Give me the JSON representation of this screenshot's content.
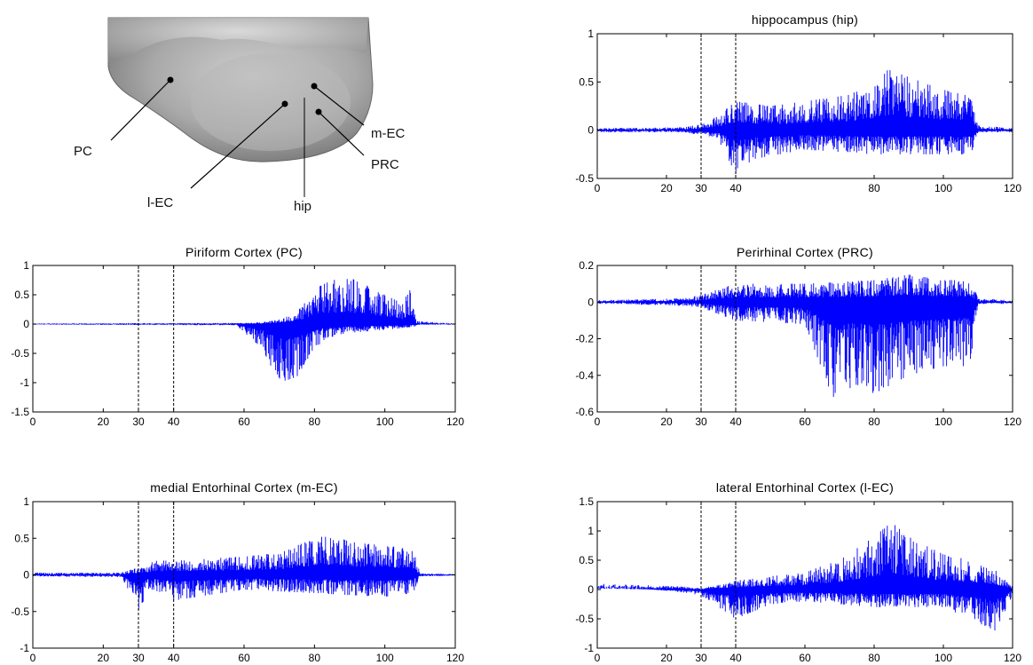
{
  "figure": {
    "x_data_range": [
      0,
      120
    ],
    "event_markers_x": [
      30,
      40
    ],
    "trace_color": "#0000ff",
    "marker_style": "black dashed vertical lines"
  },
  "brain_illustration": {
    "labels": [
      "PC",
      "m-EC",
      "PRC",
      "l-EC",
      "hip"
    ]
  },
  "chart_data": [
    {
      "id": "hip",
      "type": "line",
      "title": "hippocampus (hip)",
      "xlim": [
        0,
        120
      ],
      "ylim": [
        -0.5,
        1
      ],
      "xticks": [
        0,
        20,
        30,
        40,
        80,
        100,
        120
      ],
      "yticks": [
        -0.5,
        0,
        0.5,
        1
      ],
      "ytick_labels": [
        "-0.5",
        "0",
        "0.5",
        "1"
      ],
      "series": [
        {
          "color": "#0000ff",
          "envelope_points": [
            [
              0,
              0.02
            ],
            [
              25,
              0.03
            ],
            [
              30,
              0.06
            ],
            [
              35,
              0.15
            ],
            [
              40,
              0.3
            ],
            [
              50,
              0.25
            ],
            [
              60,
              0.3
            ],
            [
              70,
              0.35
            ],
            [
              80,
              0.45
            ],
            [
              84,
              0.63
            ],
            [
              90,
              0.55
            ],
            [
              100,
              0.42
            ],
            [
              108,
              0.35
            ],
            [
              110,
              0.05
            ],
            [
              120,
              0.02
            ]
          ],
          "trough_points": [
            [
              0,
              -0.02
            ],
            [
              25,
              -0.02
            ],
            [
              30,
              -0.05
            ],
            [
              35,
              -0.1
            ],
            [
              40,
              -0.45
            ],
            [
              45,
              -0.3
            ],
            [
              60,
              -0.2
            ],
            [
              80,
              -0.25
            ],
            [
              100,
              -0.25
            ],
            [
              108,
              -0.25
            ],
            [
              110,
              -0.02
            ],
            [
              120,
              -0.02
            ]
          ]
        }
      ]
    },
    {
      "id": "pc",
      "type": "line",
      "title": "Piriform Cortex (PC)",
      "xlim": [
        0,
        120
      ],
      "ylim": [
        -1.5,
        1
      ],
      "xticks": [
        0,
        20,
        30,
        40,
        60,
        80,
        100,
        120
      ],
      "yticks": [
        -1.5,
        -1,
        -0.5,
        0,
        0.5,
        1
      ],
      "ytick_labels": [
        "-1.5",
        "-1",
        "-0.5",
        "0",
        "0.5",
        "1"
      ],
      "series": [
        {
          "color": "#0000ff",
          "envelope_points": [
            [
              0,
              0.01
            ],
            [
              60,
              0.02
            ],
            [
              65,
              0.03
            ],
            [
              70,
              0.08
            ],
            [
              75,
              0.2
            ],
            [
              80,
              0.6
            ],
            [
              85,
              0.75
            ],
            [
              90,
              0.78
            ],
            [
              95,
              0.7
            ],
            [
              100,
              0.5
            ],
            [
              105,
              0.35
            ],
            [
              107,
              0.6
            ],
            [
              109,
              0.05
            ],
            [
              120,
              0.01
            ]
          ],
          "trough_points": [
            [
              0,
              -0.01
            ],
            [
              58,
              -0.02
            ],
            [
              60,
              -0.15
            ],
            [
              65,
              -0.4
            ],
            [
              70,
              -1.0
            ],
            [
              75,
              -0.9
            ],
            [
              78,
              -0.6
            ],
            [
              82,
              -0.3
            ],
            [
              90,
              -0.15
            ],
            [
              100,
              -0.1
            ],
            [
              108,
              -0.05
            ],
            [
              110,
              -0.01
            ],
            [
              120,
              -0.01
            ]
          ]
        }
      ]
    },
    {
      "id": "prc",
      "type": "line",
      "title": "Perirhinal Cortex (PRC)",
      "xlim": [
        0,
        120
      ],
      "ylim": [
        -0.6,
        0.2
      ],
      "xticks": [
        0,
        20,
        30,
        40,
        60,
        80,
        100,
        120
      ],
      "yticks": [
        -0.6,
        -0.4,
        -0.2,
        0,
        0.2
      ],
      "ytick_labels": [
        "-0.6",
        "-0.4",
        "-0.2",
        "0",
        "0.2"
      ],
      "series": [
        {
          "color": "#0000ff",
          "envelope_points": [
            [
              0,
              0.01
            ],
            [
              25,
              0.02
            ],
            [
              30,
              0.04
            ],
            [
              35,
              0.07
            ],
            [
              40,
              0.1
            ],
            [
              60,
              0.1
            ],
            [
              80,
              0.12
            ],
            [
              90,
              0.15
            ],
            [
              100,
              0.12
            ],
            [
              108,
              0.12
            ],
            [
              110,
              0.02
            ],
            [
              120,
              0.01
            ]
          ],
          "trough_points": [
            [
              0,
              -0.01
            ],
            [
              6,
              -0.01
            ],
            [
              25,
              -0.02
            ],
            [
              30,
              -0.03
            ],
            [
              40,
              -0.1
            ],
            [
              60,
              -0.12
            ],
            [
              68,
              -0.52
            ],
            [
              75,
              -0.45
            ],
            [
              80,
              -0.5
            ],
            [
              90,
              -0.4
            ],
            [
              100,
              -0.35
            ],
            [
              108,
              -0.35
            ],
            [
              110,
              -0.01
            ],
            [
              120,
              -0.01
            ]
          ]
        }
      ]
    },
    {
      "id": "mec",
      "type": "line",
      "title": "medial Entorhinal Cortex (m-EC)",
      "xlim": [
        0,
        120
      ],
      "ylim": [
        -1,
        1
      ],
      "xticks": [
        0,
        20,
        30,
        40,
        60,
        80,
        100,
        120
      ],
      "yticks": [
        -1,
        -0.5,
        0,
        0.5,
        1
      ],
      "ytick_labels": [
        "-1",
        "-0.5",
        "0",
        "0.5",
        "1"
      ],
      "series": [
        {
          "color": "#0000ff",
          "envelope_points": [
            [
              0,
              0.03
            ],
            [
              25,
              0.03
            ],
            [
              30,
              0.1
            ],
            [
              35,
              0.2
            ],
            [
              40,
              0.2
            ],
            [
              60,
              0.25
            ],
            [
              70,
              0.3
            ],
            [
              80,
              0.5
            ],
            [
              85,
              0.55
            ],
            [
              90,
              0.45
            ],
            [
              100,
              0.4
            ],
            [
              108,
              0.35
            ],
            [
              110,
              0.02
            ],
            [
              120,
              0.01
            ]
          ],
          "trough_points": [
            [
              0,
              -0.02
            ],
            [
              25,
              -0.03
            ],
            [
              30,
              -0.5
            ],
            [
              33,
              -0.2
            ],
            [
              40,
              -0.35
            ],
            [
              60,
              -0.2
            ],
            [
              80,
              -0.25
            ],
            [
              100,
              -0.3
            ],
            [
              108,
              -0.25
            ],
            [
              110,
              -0.02
            ],
            [
              120,
              -0.01
            ]
          ]
        }
      ]
    },
    {
      "id": "lec",
      "type": "line",
      "title": "lateral Entorhinal Cortex (l-EC)",
      "xlim": [
        0,
        120
      ],
      "ylim": [
        -1,
        1.5
      ],
      "xticks": [
        0,
        20,
        30,
        40,
        60,
        80,
        100,
        120
      ],
      "yticks": [
        -1,
        -0.5,
        0,
        0.5,
        1,
        1.5
      ],
      "ytick_labels": [
        "-1",
        "-0.5",
        "0",
        "0.5",
        "1",
        "1.5"
      ],
      "series": [
        {
          "color": "#0000ff",
          "envelope_points": [
            [
              0,
              0.1
            ],
            [
              10,
              0.08
            ],
            [
              25,
              0.05
            ],
            [
              30,
              0.02
            ],
            [
              40,
              0.15
            ],
            [
              60,
              0.3
            ],
            [
              70,
              0.5
            ],
            [
              80,
              0.9
            ],
            [
              85,
              1.15
            ],
            [
              90,
              0.9
            ],
            [
              100,
              0.6
            ],
            [
              108,
              0.5
            ],
            [
              115,
              0.35
            ],
            [
              120,
              0.05
            ]
          ],
          "trough_points": [
            [
              0,
              0.05
            ],
            [
              10,
              0.03
            ],
            [
              25,
              -0.05
            ],
            [
              30,
              -0.1
            ],
            [
              40,
              -0.5
            ],
            [
              50,
              -0.25
            ],
            [
              60,
              -0.2
            ],
            [
              80,
              -0.3
            ],
            [
              100,
              -0.3
            ],
            [
              115,
              -0.7
            ],
            [
              120,
              -0.1
            ]
          ]
        }
      ]
    }
  ]
}
